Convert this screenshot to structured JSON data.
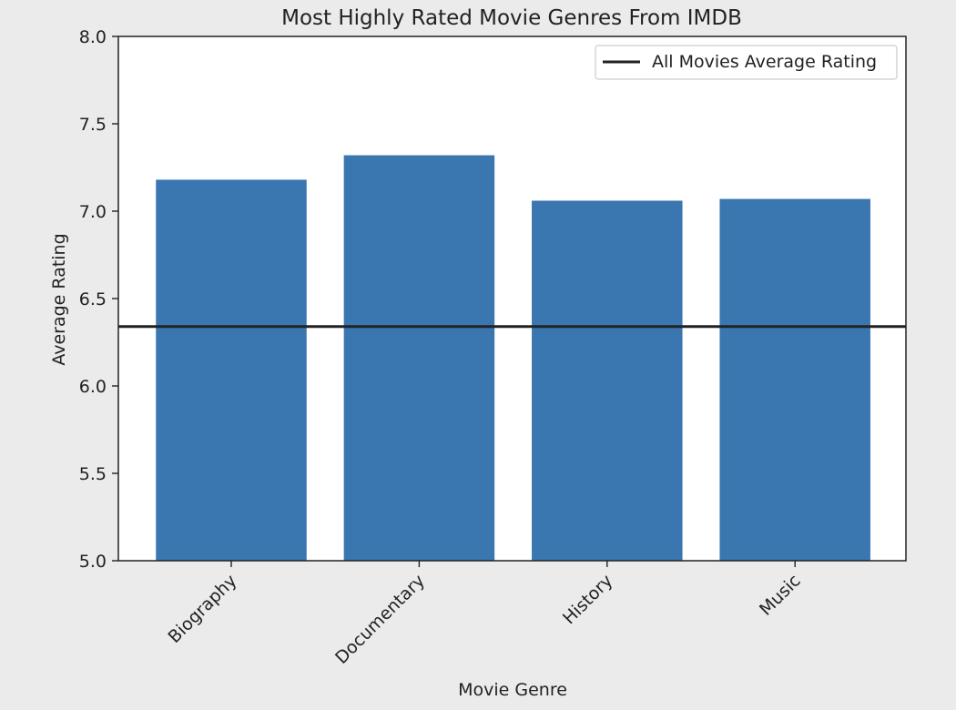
{
  "chart_data": {
    "type": "bar",
    "title": "Most Highly Rated Movie Genres From IMDB",
    "xlabel": "Movie Genre",
    "ylabel": "Average Rating",
    "categories": [
      "Biography",
      "Documentary",
      "History",
      "Music"
    ],
    "values": [
      7.18,
      7.32,
      7.06,
      7.07
    ],
    "ylim": [
      5.0,
      8.0
    ],
    "yticks": [
      5.0,
      5.5,
      6.0,
      6.5,
      7.0,
      7.5,
      8.0
    ],
    "ytick_labels": [
      "5.0",
      "5.5",
      "6.0",
      "6.5",
      "7.0",
      "7.5",
      "8.0"
    ],
    "reference_line": {
      "value": 6.34,
      "label": "All Movies Average Rating",
      "color": "#222222"
    },
    "bar_color": "#3a76af",
    "background_color": "#ebebeb",
    "plot_background_color": "#ffffff",
    "grid": false,
    "legend_position": "top-right"
  }
}
